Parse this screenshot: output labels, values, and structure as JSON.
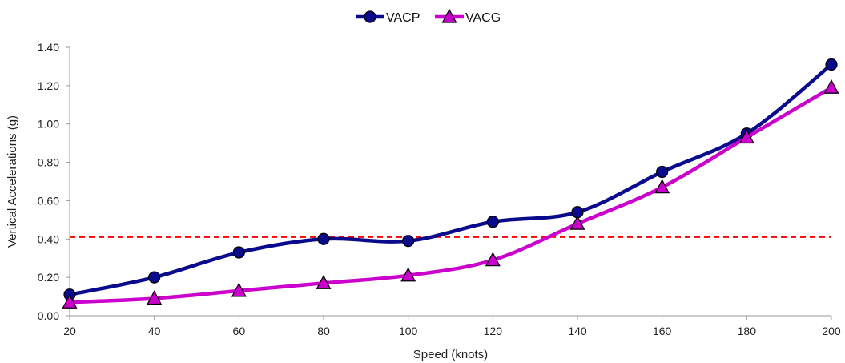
{
  "chart_data": {
    "type": "line",
    "title": "",
    "xlabel": "Speed (knots)",
    "ylabel": "Vertical Accelerations (g)",
    "x": [
      20,
      40,
      60,
      80,
      100,
      120,
      140,
      160,
      180,
      200
    ],
    "xticks": [
      "20",
      "40",
      "60",
      "80",
      "100",
      "120",
      "140",
      "160",
      "180",
      "200"
    ],
    "xlim": [
      20,
      200
    ],
    "ylim": [
      0,
      1.4
    ],
    "yticks": [
      "0.00",
      "0.20",
      "0.40",
      "0.60",
      "0.80",
      "1.00",
      "1.20",
      "1.40"
    ],
    "series": [
      {
        "name": "VACP",
        "marker": "circle",
        "color": "#0a0a8c",
        "values": [
          0.11,
          0.2,
          0.33,
          0.4,
          0.39,
          0.49,
          0.54,
          0.75,
          0.95,
          1.31
        ]
      },
      {
        "name": "VACG",
        "marker": "triangle",
        "color": "#cc00cc",
        "values": [
          0.07,
          0.09,
          0.13,
          0.17,
          0.21,
          0.29,
          0.48,
          0.67,
          0.93,
          1.19
        ]
      }
    ],
    "reference_line": {
      "y": 0.41,
      "color": "#ff0000",
      "style": "dashed"
    },
    "grid": false,
    "legend": "top-center"
  }
}
